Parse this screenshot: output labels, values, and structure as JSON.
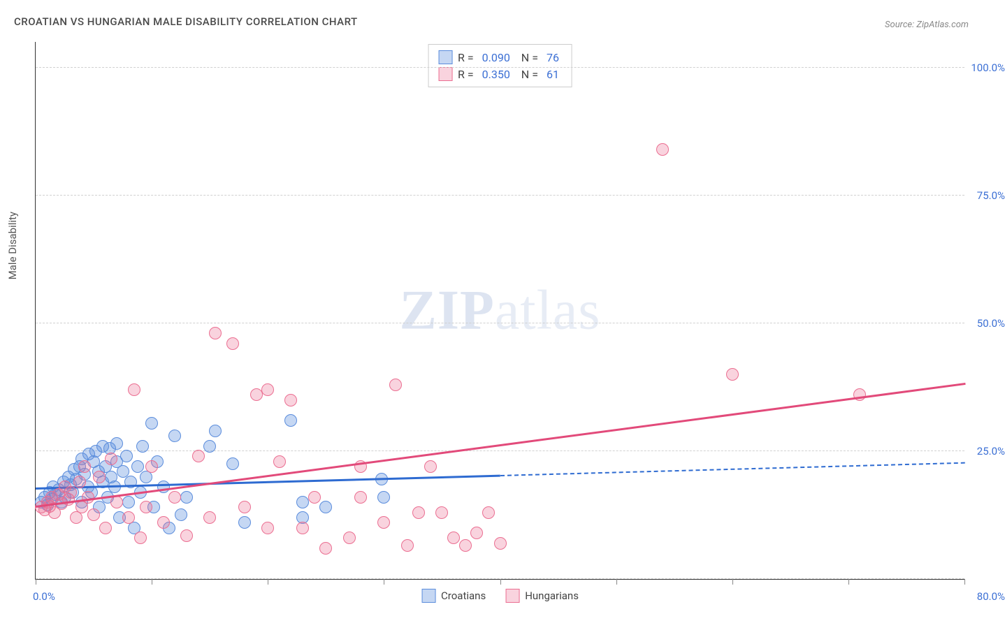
{
  "title": "CROATIAN VS HUNGARIAN MALE DISABILITY CORRELATION CHART",
  "source": "Source: ZipAtlas.com",
  "watermark_a": "ZIP",
  "watermark_b": "atlas",
  "chart": {
    "type": "scatter",
    "y_title": "Male Disability",
    "xlim": [
      0,
      80
    ],
    "ylim": [
      0,
      105
    ],
    "x_ticks": [
      0,
      10,
      20,
      30,
      40,
      50,
      60,
      70,
      80
    ],
    "x_tick_labels": {
      "0": "0.0%",
      "80": "80.0%"
    },
    "y_gridlines": [
      0,
      25,
      50,
      75,
      100
    ],
    "y_tick_labels": {
      "25": "25.0%",
      "50": "50.0%",
      "75": "75.0%",
      "100": "100.0%"
    },
    "background_color": "#ffffff",
    "grid_color": "#d0d0d0",
    "axis_color": "#333333",
    "marker_radius": 9,
    "marker_stroke_width": 1,
    "title_color": "#4a4a4a",
    "title_fontsize": 15,
    "label_color": "#3b6fd4",
    "label_fontsize": 15,
    "series": [
      {
        "name": "Croatians",
        "fill": "rgba(90, 140, 220, 0.35)",
        "stroke": "#5a8cdc",
        "line_color": "#2e6bd1",
        "r": "0.090",
        "n": "76",
        "trend": {
          "x1": 0,
          "y1": 17.5,
          "x2": 40,
          "y2": 20.0,
          "ext_x2": 80,
          "ext_y2": 22.5
        },
        "points": [
          [
            0.5,
            15
          ],
          [
            0.8,
            16
          ],
          [
            1.0,
            14.5
          ],
          [
            1.2,
            17
          ],
          [
            1.4,
            15.5
          ],
          [
            1.5,
            18
          ],
          [
            1.7,
            16.5
          ],
          [
            2.0,
            17.5
          ],
          [
            2.2,
            15
          ],
          [
            2.4,
            19
          ],
          [
            2.5,
            16
          ],
          [
            2.8,
            20
          ],
          [
            3.0,
            18.5
          ],
          [
            3.2,
            17
          ],
          [
            3.3,
            21.5
          ],
          [
            3.5,
            19.5
          ],
          [
            3.8,
            22
          ],
          [
            4.0,
            15
          ],
          [
            4.0,
            23.5
          ],
          [
            4.2,
            20.5
          ],
          [
            4.5,
            18
          ],
          [
            4.6,
            24.5
          ],
          [
            4.8,
            17
          ],
          [
            5.0,
            23
          ],
          [
            5.2,
            25
          ],
          [
            5.4,
            21
          ],
          [
            5.5,
            14
          ],
          [
            5.8,
            19
          ],
          [
            5.8,
            26
          ],
          [
            6.0,
            22
          ],
          [
            6.2,
            16
          ],
          [
            6.4,
            25.5
          ],
          [
            6.5,
            20
          ],
          [
            6.8,
            18
          ],
          [
            7.0,
            23
          ],
          [
            7.0,
            26.5
          ],
          [
            7.2,
            12
          ],
          [
            7.5,
            21
          ],
          [
            7.8,
            24
          ],
          [
            8.0,
            15
          ],
          [
            8.2,
            19
          ],
          [
            8.5,
            10
          ],
          [
            8.8,
            22
          ],
          [
            9.0,
            17
          ],
          [
            9.2,
            26
          ],
          [
            9.5,
            20
          ],
          [
            10.0,
            30.5
          ],
          [
            10.2,
            14
          ],
          [
            10.5,
            23
          ],
          [
            11.0,
            18
          ],
          [
            11.5,
            10
          ],
          [
            12.0,
            28
          ],
          [
            12.5,
            12.5
          ],
          [
            13.0,
            16
          ],
          [
            15.0,
            26
          ],
          [
            15.5,
            29
          ],
          [
            17.0,
            22.5
          ],
          [
            18.0,
            11
          ],
          [
            22.0,
            31
          ],
          [
            23.0,
            15
          ],
          [
            23.0,
            12
          ],
          [
            25.0,
            14
          ],
          [
            29.8,
            19.5
          ],
          [
            30,
            16
          ]
        ]
      },
      {
        "name": "Hungarians",
        "fill": "rgba(235, 110, 145, 0.30)",
        "stroke": "#eb6e91",
        "line_color": "#e24a7a",
        "r": "0.350",
        "n": "61",
        "trend": {
          "x1": 0,
          "y1": 14.0,
          "x2": 80,
          "y2": 38.0
        },
        "points": [
          [
            0.5,
            14
          ],
          [
            0.8,
            13.5
          ],
          [
            1.0,
            15
          ],
          [
            1.2,
            14.2
          ],
          [
            1.4,
            16
          ],
          [
            1.6,
            13
          ],
          [
            2.0,
            16.5
          ],
          [
            2.2,
            14.8
          ],
          [
            2.5,
            18
          ],
          [
            2.8,
            15.5
          ],
          [
            3.0,
            17
          ],
          [
            3.5,
            12
          ],
          [
            3.8,
            19
          ],
          [
            4.0,
            14
          ],
          [
            4.2,
            22
          ],
          [
            4.5,
            16
          ],
          [
            5.0,
            12.5
          ],
          [
            5.5,
            20
          ],
          [
            6.0,
            10
          ],
          [
            6.5,
            23.5
          ],
          [
            7.0,
            15
          ],
          [
            8.0,
            12
          ],
          [
            8.5,
            37
          ],
          [
            9.0,
            8
          ],
          [
            9.5,
            14
          ],
          [
            10.0,
            22
          ],
          [
            11.0,
            11
          ],
          [
            12.0,
            16
          ],
          [
            13.0,
            8.5
          ],
          [
            14.0,
            24
          ],
          [
            15.0,
            12
          ],
          [
            15.5,
            48
          ],
          [
            17.0,
            46
          ],
          [
            18.0,
            14
          ],
          [
            19.0,
            36
          ],
          [
            20.0,
            10
          ],
          [
            20.0,
            37
          ],
          [
            21.0,
            23
          ],
          [
            22.0,
            35
          ],
          [
            23.0,
            10
          ],
          [
            24.0,
            16
          ],
          [
            25.0,
            6
          ],
          [
            27.0,
            8
          ],
          [
            28.0,
            16
          ],
          [
            28.0,
            22
          ],
          [
            30.0,
            11
          ],
          [
            31.0,
            38
          ],
          [
            32.0,
            6.5
          ],
          [
            33.0,
            13
          ],
          [
            34.0,
            22
          ],
          [
            35.0,
            13
          ],
          [
            36.0,
            8
          ],
          [
            37.0,
            6.5
          ],
          [
            38.0,
            9
          ],
          [
            39.0,
            13
          ],
          [
            40.0,
            7
          ],
          [
            54.0,
            84
          ],
          [
            60.0,
            40
          ],
          [
            71.0,
            36
          ]
        ]
      }
    ],
    "legend_bottom": [
      {
        "label": "Croatians",
        "series_index": 0
      },
      {
        "label": "Hungarians",
        "series_index": 1
      }
    ]
  }
}
